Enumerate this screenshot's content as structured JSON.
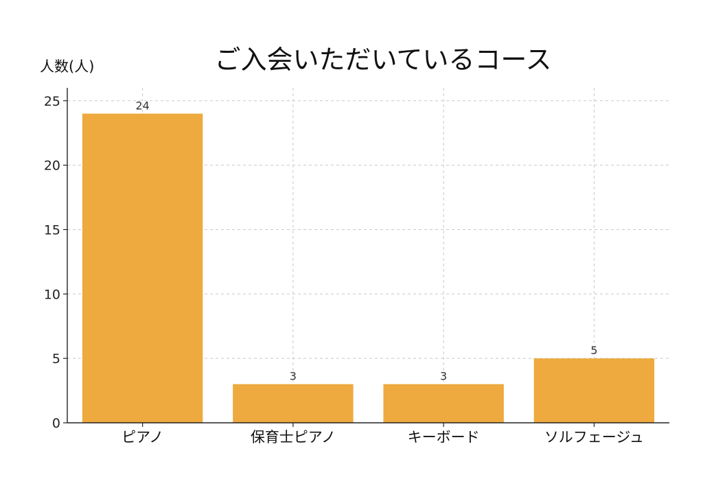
{
  "chart_data": {
    "type": "bar",
    "title": "ご入会いただいているコース",
    "ylabel": "人数(人)",
    "xlabel": "",
    "categories": [
      "ピアノ",
      "保育士ピアノ",
      "キーボード",
      "ソルフェージュ"
    ],
    "values": [
      24,
      3,
      3,
      5
    ],
    "data_labels": [
      "24",
      "3",
      "3",
      "5"
    ],
    "ylim": [
      0,
      26
    ],
    "yticks": [
      0,
      5,
      10,
      15,
      20,
      25
    ],
    "grid": true,
    "bar_color": "#EEAA3E",
    "grid_color": "#c8c8c8",
    "axis_color": "#222222"
  }
}
